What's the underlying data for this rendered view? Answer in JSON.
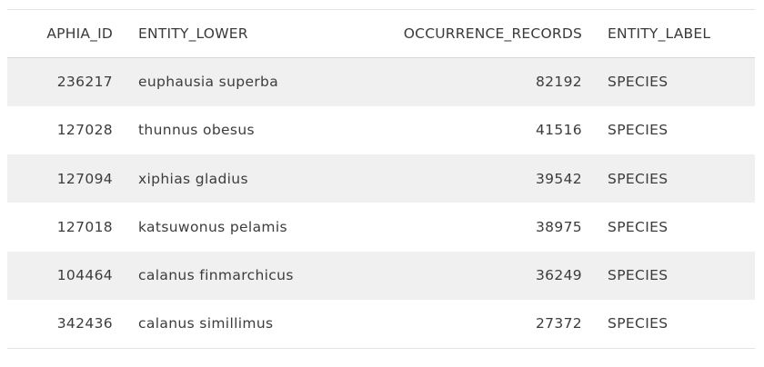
{
  "table": {
    "columns": [
      "APHIA_ID",
      "ENTITY_LOWER",
      "OCCURRENCE_RECORDS",
      "ENTITY_LABEL"
    ],
    "rows": [
      {
        "aphia_id": "236217",
        "entity_lower": "euphausia superba",
        "occurrence_records": "82192",
        "entity_label": "SPECIES"
      },
      {
        "aphia_id": "127028",
        "entity_lower": "thunnus obesus",
        "occurrence_records": "41516",
        "entity_label": "SPECIES"
      },
      {
        "aphia_id": "127094",
        "entity_lower": "xiphias gladius",
        "occurrence_records": "39542",
        "entity_label": "SPECIES"
      },
      {
        "aphia_id": "127018",
        "entity_lower": "katsuwonus pelamis",
        "occurrence_records": "38975",
        "entity_label": "SPECIES"
      },
      {
        "aphia_id": "104464",
        "entity_lower": "calanus finmarchicus",
        "occurrence_records": "36249",
        "entity_label": "SPECIES"
      },
      {
        "aphia_id": "342436",
        "entity_lower": "calanus simillimus",
        "occurrence_records": "27372",
        "entity_label": "SPECIES"
      }
    ]
  },
  "colors": {
    "stripe": "#f0f0f0",
    "text": "#3a3a3a",
    "border": "#d6d6d6"
  }
}
